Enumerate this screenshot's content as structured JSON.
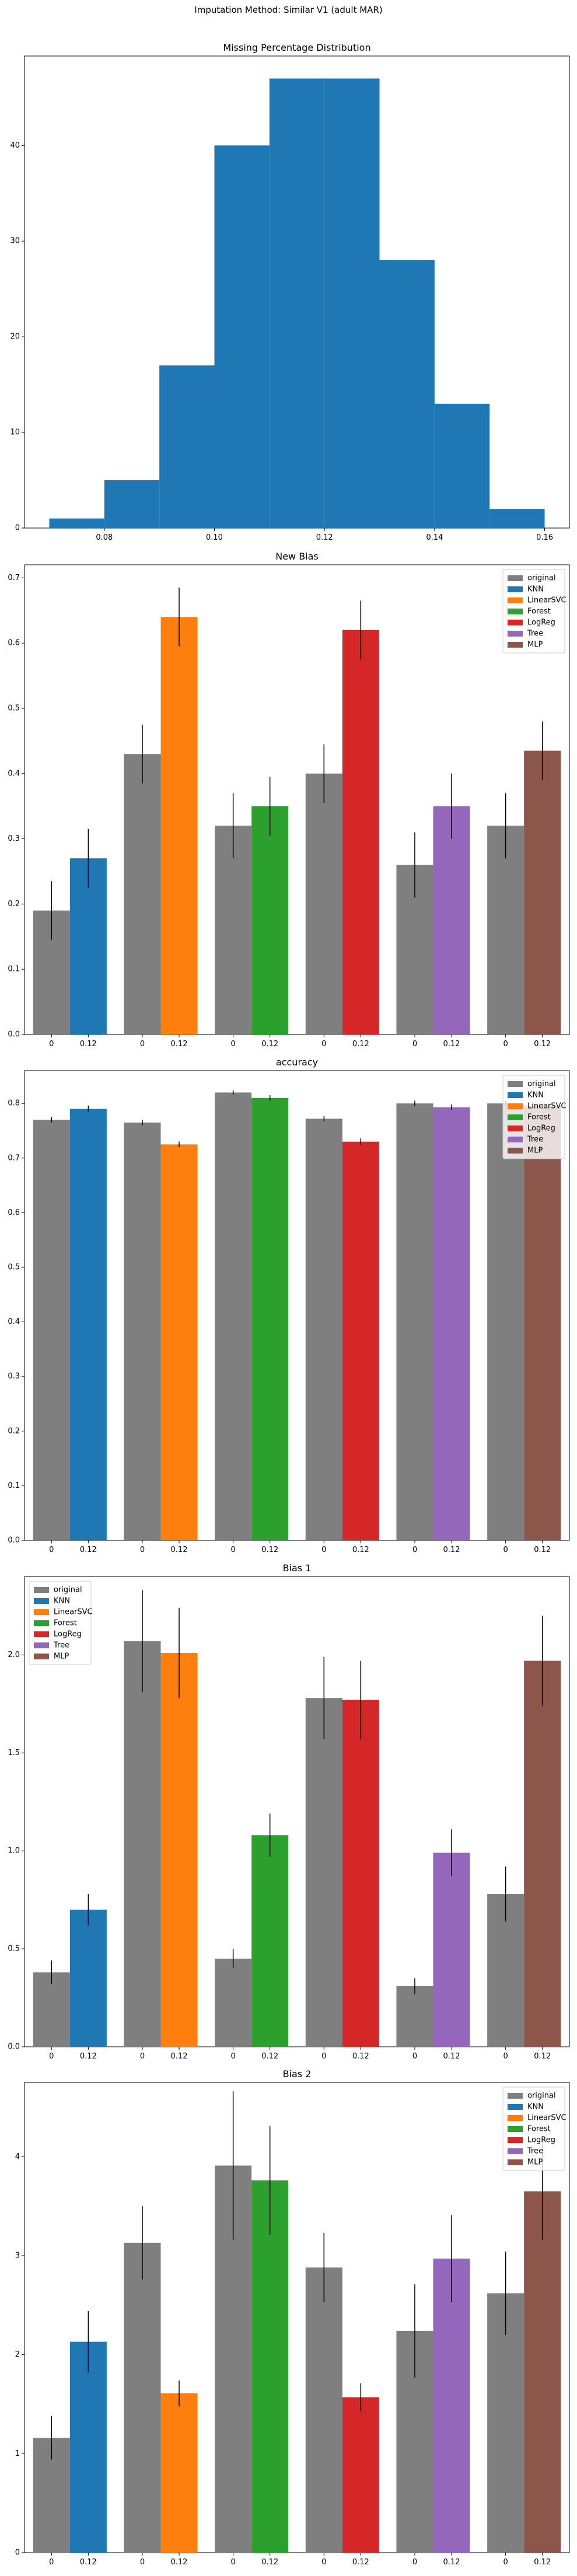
{
  "suptitle": "Imputation Method: Similar V1 (adult MAR)",
  "colors": {
    "original": "#7f7f7f",
    "KNN": "#1f77b4",
    "LinearSVC": "#ff7f0e",
    "Forest": "#2ca02c",
    "LogReg": "#d62728",
    "Tree": "#9467bd",
    "MLP": "#8c564b",
    "hist": "#1f77b4"
  },
  "chart_data": [
    {
      "type": "histogram",
      "title": "Missing Percentage Distribution",
      "bins": [
        0.07,
        0.08,
        0.09,
        0.1,
        0.11,
        0.12,
        0.13,
        0.14,
        0.15,
        0.16
      ],
      "counts": [
        1,
        5,
        17,
        40,
        47,
        47,
        28,
        13,
        2
      ],
      "xticks": [
        0.08,
        0.1,
        0.12,
        0.14,
        0.16
      ],
      "xtick_labels": [
        "0.08",
        "0.10",
        "0.12",
        "0.14",
        "0.16"
      ],
      "xlim": [
        0.0655,
        0.1645
      ],
      "yticks": [
        0,
        10,
        20,
        30,
        40
      ],
      "ylim": [
        0,
        49.35
      ]
    },
    {
      "type": "bar",
      "title": "New Bias",
      "groups": [
        "KNN",
        "LinearSVC",
        "Forest",
        "LogReg",
        "Tree",
        "MLP"
      ],
      "x_labels": [
        "0",
        "0.12"
      ],
      "original": [
        0.19,
        0.43,
        0.32,
        0.4,
        0.26,
        0.32
      ],
      "original_err": [
        0.045,
        0.045,
        0.05,
        0.045,
        0.05,
        0.05
      ],
      "imputed": [
        0.27,
        0.64,
        0.35,
        0.62,
        0.35,
        0.435
      ],
      "imputed_err": [
        0.045,
        0.045,
        0.045,
        0.045,
        0.05,
        0.045
      ],
      "ylim": [
        0,
        0.72
      ],
      "yticks": [
        0.0,
        0.1,
        0.2,
        0.3,
        0.4,
        0.5,
        0.6,
        0.7
      ],
      "ytick_labels": [
        "0.0",
        "0.1",
        "0.2",
        "0.3",
        "0.4",
        "0.5",
        "0.6",
        "0.7"
      ],
      "legend": "top-right"
    },
    {
      "type": "bar",
      "title": "accuracy",
      "groups": [
        "KNN",
        "LinearSVC",
        "Forest",
        "LogReg",
        "Tree",
        "MLP"
      ],
      "x_labels": [
        "0",
        "0.12"
      ],
      "original": [
        0.77,
        0.765,
        0.82,
        0.772,
        0.8,
        0.8
      ],
      "original_err": [
        0.005,
        0.005,
        0.004,
        0.005,
        0.005,
        0.005
      ],
      "imputed": [
        0.79,
        0.725,
        0.81,
        0.73,
        0.793,
        0.795
      ],
      "imputed_err": [
        0.006,
        0.005,
        0.005,
        0.006,
        0.005,
        0.005
      ],
      "ylim": [
        0,
        0.86
      ],
      "yticks": [
        0.0,
        0.1,
        0.2,
        0.3,
        0.4,
        0.5,
        0.6,
        0.7,
        0.8
      ],
      "ytick_labels": [
        "0.0",
        "0.1",
        "0.2",
        "0.3",
        "0.4",
        "0.5",
        "0.6",
        "0.7",
        "0.8"
      ],
      "legend": "top-right"
    },
    {
      "type": "bar",
      "title": "Bias 1",
      "groups": [
        "KNN",
        "LinearSVC",
        "Forest",
        "LogReg",
        "Tree",
        "MLP"
      ],
      "x_labels": [
        "0",
        "0.12"
      ],
      "original": [
        0.38,
        2.07,
        0.45,
        1.78,
        0.31,
        0.78
      ],
      "original_err": [
        0.06,
        0.26,
        0.05,
        0.21,
        0.04,
        0.14
      ],
      "imputed": [
        0.7,
        2.01,
        1.08,
        1.77,
        0.99,
        1.97
      ],
      "imputed_err": [
        0.08,
        0.23,
        0.11,
        0.2,
        0.12,
        0.23
      ],
      "ylim": [
        0,
        2.4
      ],
      "yticks": [
        0.0,
        0.5,
        1.0,
        1.5,
        2.0
      ],
      "ytick_labels": [
        "0.0",
        "0.5",
        "1.0",
        "1.5",
        "2.0"
      ],
      "legend": "top-left"
    },
    {
      "type": "bar",
      "title": "Bias 2",
      "groups": [
        "KNN",
        "LinearSVC",
        "Forest",
        "LogReg",
        "Tree",
        "MLP"
      ],
      "x_labels": [
        "0",
        "0.12"
      ],
      "original": [
        1.16,
        3.13,
        3.91,
        2.88,
        2.24,
        2.62
      ],
      "original_err": [
        0.22,
        0.37,
        0.75,
        0.35,
        0.47,
        0.42
      ],
      "imputed": [
        2.13,
        1.61,
        3.76,
        1.57,
        2.97,
        3.65
      ],
      "imputed_err": [
        0.31,
        0.13,
        0.55,
        0.14,
        0.44,
        0.49
      ],
      "ylim": [
        0,
        4.75
      ],
      "yticks": [
        0,
        1,
        2,
        3,
        4
      ],
      "ytick_labels": [
        "0",
        "1",
        "2",
        "3",
        "4"
      ],
      "legend": "top-right"
    }
  ],
  "legend_labels": [
    "original",
    "KNN",
    "LinearSVC",
    "Forest",
    "LogReg",
    "Tree",
    "MLP"
  ]
}
